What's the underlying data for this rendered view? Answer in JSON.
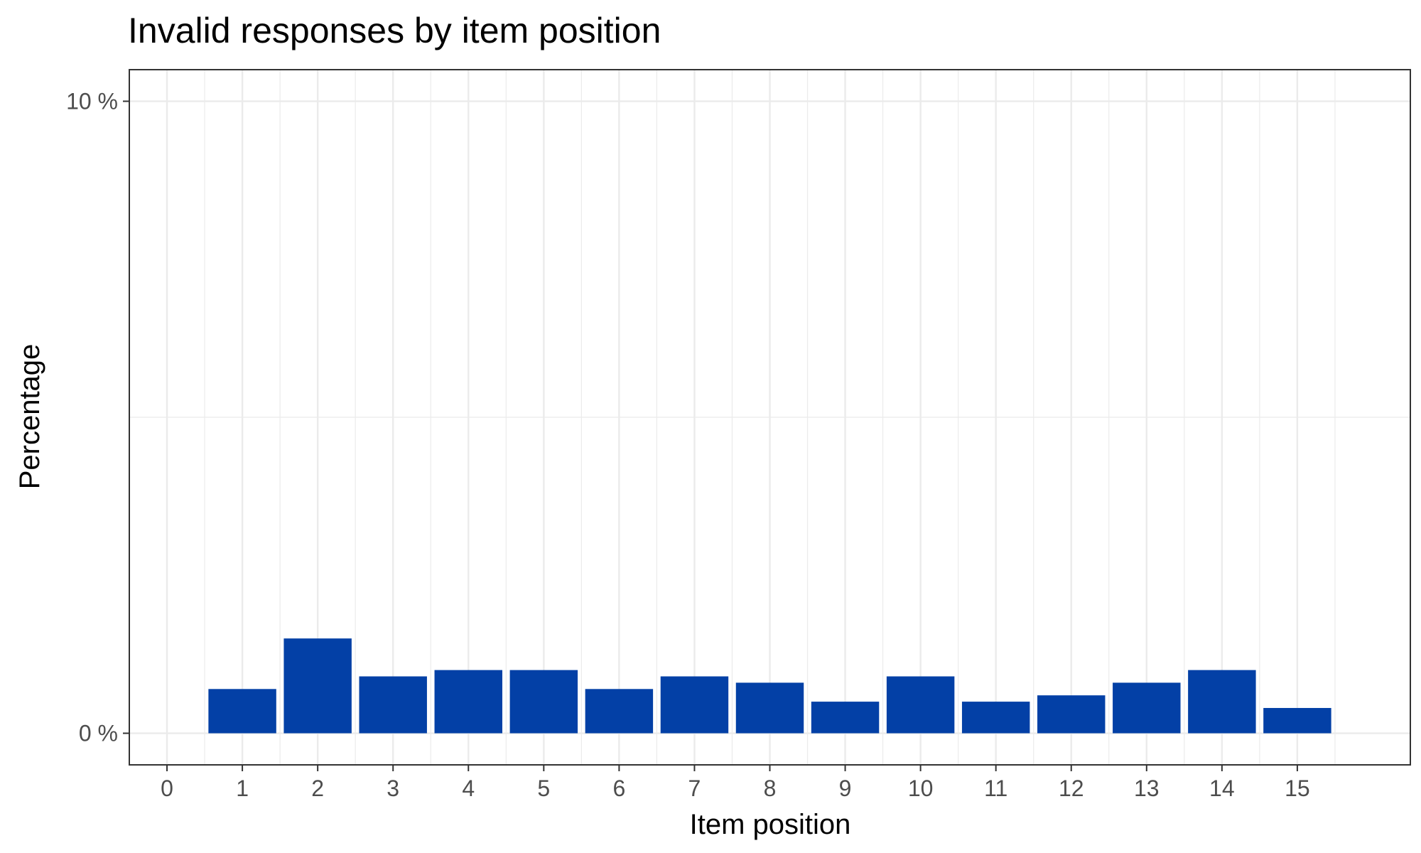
{
  "chart_data": {
    "type": "bar",
    "title": "Invalid responses by item position",
    "xlabel": "Item position",
    "ylabel": "Percentage",
    "x": [
      1,
      2,
      3,
      4,
      5,
      6,
      7,
      8,
      9,
      10,
      11,
      12,
      13,
      14,
      15
    ],
    "values": [
      0.7,
      1.5,
      0.9,
      1.0,
      1.0,
      0.7,
      0.9,
      0.8,
      0.5,
      0.9,
      0.5,
      0.6,
      0.8,
      1.0,
      0.4
    ],
    "xlim": [
      -0.5,
      16.5
    ],
    "ylim": [
      -0.5,
      10.5
    ],
    "x_ticks": [
      "0",
      "1",
      "2",
      "3",
      "4",
      "5",
      "6",
      "7",
      "8",
      "9",
      "10",
      "11",
      "12",
      "13",
      "14",
      "15"
    ],
    "y_ticks": [
      {
        "value": 0,
        "label": "0 %"
      },
      {
        "value": 10,
        "label": "10 %"
      }
    ],
    "grid": true,
    "legend": "none",
    "bar_color": "#0340A6",
    "grid_color": "#EBEBEB",
    "panel_border_color": "#333333"
  }
}
